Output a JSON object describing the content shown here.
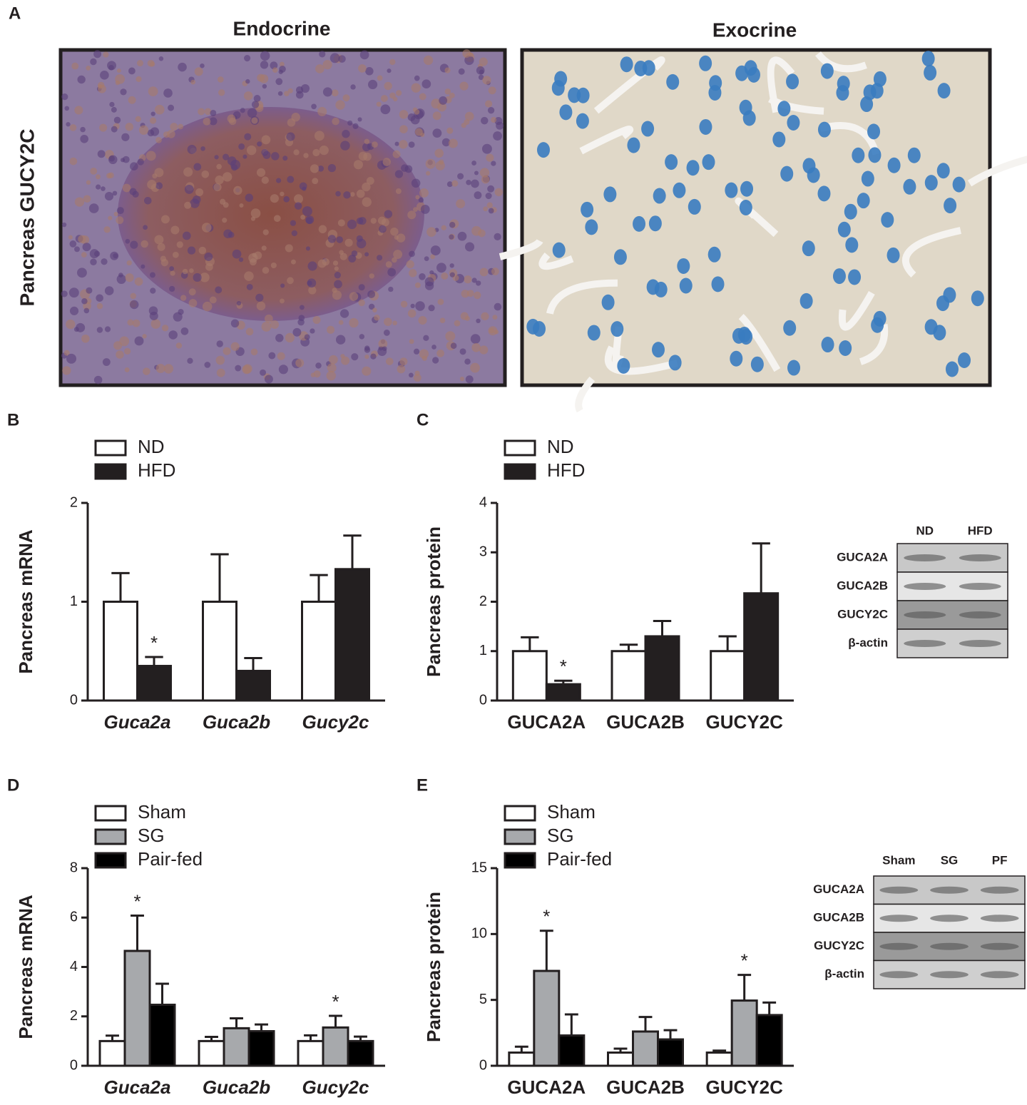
{
  "figure_a": {
    "panel": "A",
    "titles": [
      "Endocrine",
      "Exocrine"
    ],
    "ylabel": "Pancreas GUCY2C"
  },
  "chart_data": [
    {
      "type": "bar",
      "panel": "B",
      "ylabel": "Pancreas mRNA",
      "categories": [
        "Guca2a",
        "Guca2b",
        "Gucy2c"
      ],
      "ylim": [
        0,
        2
      ],
      "yticks": [
        0,
        1,
        2
      ],
      "series": [
        {
          "name": "ND",
          "color": "#ffffff",
          "values": [
            1,
            1,
            1
          ],
          "errors": [
            0.29,
            0.48,
            0.27
          ],
          "significance": [
            null,
            null,
            null
          ]
        },
        {
          "name": "HFD",
          "color": "#231f20",
          "values": [
            0.35,
            0.3,
            1.33
          ],
          "errors": [
            0.09,
            0.13,
            0.34
          ],
          "significance": [
            "*",
            null,
            null
          ]
        }
      ]
    },
    {
      "type": "bar",
      "panel": "C",
      "ylabel": "Pancreas protein",
      "categories": [
        "GUCA2A",
        "GUCA2B",
        "GUCY2C"
      ],
      "ylim": [
        0,
        4
      ],
      "yticks": [
        0,
        1,
        2,
        3,
        4
      ],
      "series": [
        {
          "name": "ND",
          "color": "#ffffff",
          "values": [
            1,
            1,
            1
          ],
          "errors": [
            0.28,
            0.13,
            0.3
          ],
          "significance": [
            null,
            null,
            null
          ]
        },
        {
          "name": "HFD",
          "color": "#231f20",
          "values": [
            0.33,
            1.3,
            2.17
          ],
          "errors": [
            0.07,
            0.31,
            1.01
          ],
          "significance": [
            "*",
            null,
            null
          ]
        }
      ]
    },
    {
      "type": "bar",
      "panel": "D",
      "ylabel": "Pancreas mRNA",
      "categories": [
        "Guca2a",
        "Guca2b",
        "Gucy2c"
      ],
      "ylim": [
        0,
        8
      ],
      "yticks": [
        0,
        2,
        4,
        6,
        8
      ],
      "series": [
        {
          "name": "Sham",
          "color": "#ffffff",
          "values": [
            1,
            1,
            1
          ],
          "errors": [
            0.22,
            0.17,
            0.23
          ],
          "significance": [
            null,
            null,
            null
          ]
        },
        {
          "name": "SG",
          "color": "#a7a9ac",
          "values": [
            4.65,
            1.52,
            1.55
          ],
          "errors": [
            1.43,
            0.4,
            0.47
          ],
          "significance": [
            "*",
            null,
            "*"
          ]
        },
        {
          "name": "Pair-fed",
          "color": "#000000",
          "values": [
            2.47,
            1.4,
            1.0
          ],
          "errors": [
            0.85,
            0.27,
            0.18
          ],
          "significance": [
            null,
            null,
            null
          ]
        }
      ]
    },
    {
      "type": "bar",
      "panel": "E",
      "ylabel": "Pancreas protein",
      "categories": [
        "GUCA2A",
        "GUCA2B",
        "GUCY2C"
      ],
      "ylim": [
        0,
        15
      ],
      "yticks": [
        0,
        5,
        10,
        15
      ],
      "series": [
        {
          "name": "Sham",
          "color": "#ffffff",
          "values": [
            1,
            1,
            1
          ],
          "errors": [
            0.45,
            0.3,
            0.15
          ],
          "significance": [
            null,
            null,
            null
          ]
        },
        {
          "name": "SG",
          "color": "#a7a9ac",
          "values": [
            7.2,
            2.6,
            4.95
          ],
          "errors": [
            3.05,
            1.1,
            1.95
          ],
          "significance": [
            "*",
            null,
            "*"
          ]
        },
        {
          "name": "Pair-fed",
          "color": "#000000",
          "values": [
            2.3,
            2.0,
            3.85
          ],
          "errors": [
            1.6,
            0.7,
            0.95
          ],
          "significance": [
            null,
            null,
            null
          ]
        }
      ]
    }
  ],
  "blots": [
    {
      "columns": [
        "ND",
        "HFD"
      ],
      "rows": [
        "GUCA2A",
        "GUCA2B",
        "GUCY2C",
        "β-actin"
      ]
    },
    {
      "columns": [
        "Sham",
        "SG",
        "PF"
      ],
      "rows": [
        "GUCA2A",
        "GUCA2B",
        "GUCY2C",
        "β-actin"
      ]
    }
  ]
}
